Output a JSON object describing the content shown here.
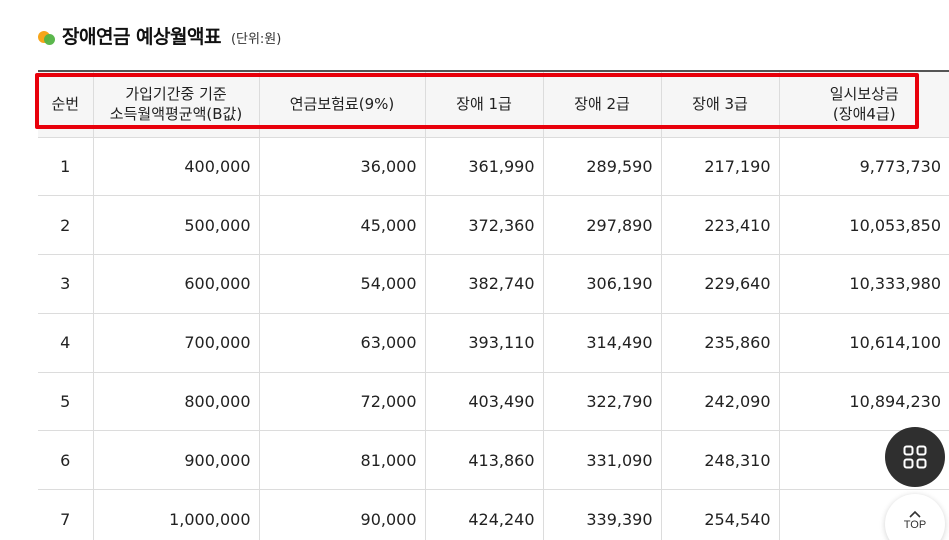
{
  "header": {
    "title": "장애연금 예상월액표",
    "unit": "(단위:원)"
  },
  "table": {
    "columns": [
      {
        "line1": "순번",
        "line2": ""
      },
      {
        "line1": "가입기간중 기준",
        "line2": "소득월액평균액(B값)"
      },
      {
        "line1": "연금보험료(9%)",
        "line2": ""
      },
      {
        "line1": "장애 1급",
        "line2": ""
      },
      {
        "line1": "장애 2급",
        "line2": ""
      },
      {
        "line1": "장애 3급",
        "line2": ""
      },
      {
        "line1": "일시보상금",
        "line2": "(장애4급)"
      }
    ],
    "rows": [
      [
        "1",
        "400,000",
        "36,000",
        "361,990",
        "289,590",
        "217,190",
        "9,773,730"
      ],
      [
        "2",
        "500,000",
        "45,000",
        "372,360",
        "297,890",
        "223,410",
        "10,053,850"
      ],
      [
        "3",
        "600,000",
        "54,000",
        "382,740",
        "306,190",
        "229,640",
        "10,333,980"
      ],
      [
        "4",
        "700,000",
        "63,000",
        "393,110",
        "314,490",
        "235,860",
        "10,614,100"
      ],
      [
        "5",
        "800,000",
        "72,000",
        "403,490",
        "322,790",
        "242,090",
        "10,894,230"
      ],
      [
        "6",
        "900,000",
        "81,000",
        "413,860",
        "331,090",
        "248,310",
        "11,1"
      ],
      [
        "7",
        "1,000,000",
        "90,000",
        "424,240",
        "339,390",
        "254,540",
        "11,4"
      ]
    ]
  },
  "floating": {
    "menu_icon": "grid-icon",
    "top_icon": "chevron-up-icon",
    "top_label": "TOP"
  },
  "colors": {
    "highlight": "#e8000b",
    "title_dot_orange": "#f6a51a",
    "title_dot_green": "#52b343",
    "fab_dark": "#2f2f2f"
  }
}
